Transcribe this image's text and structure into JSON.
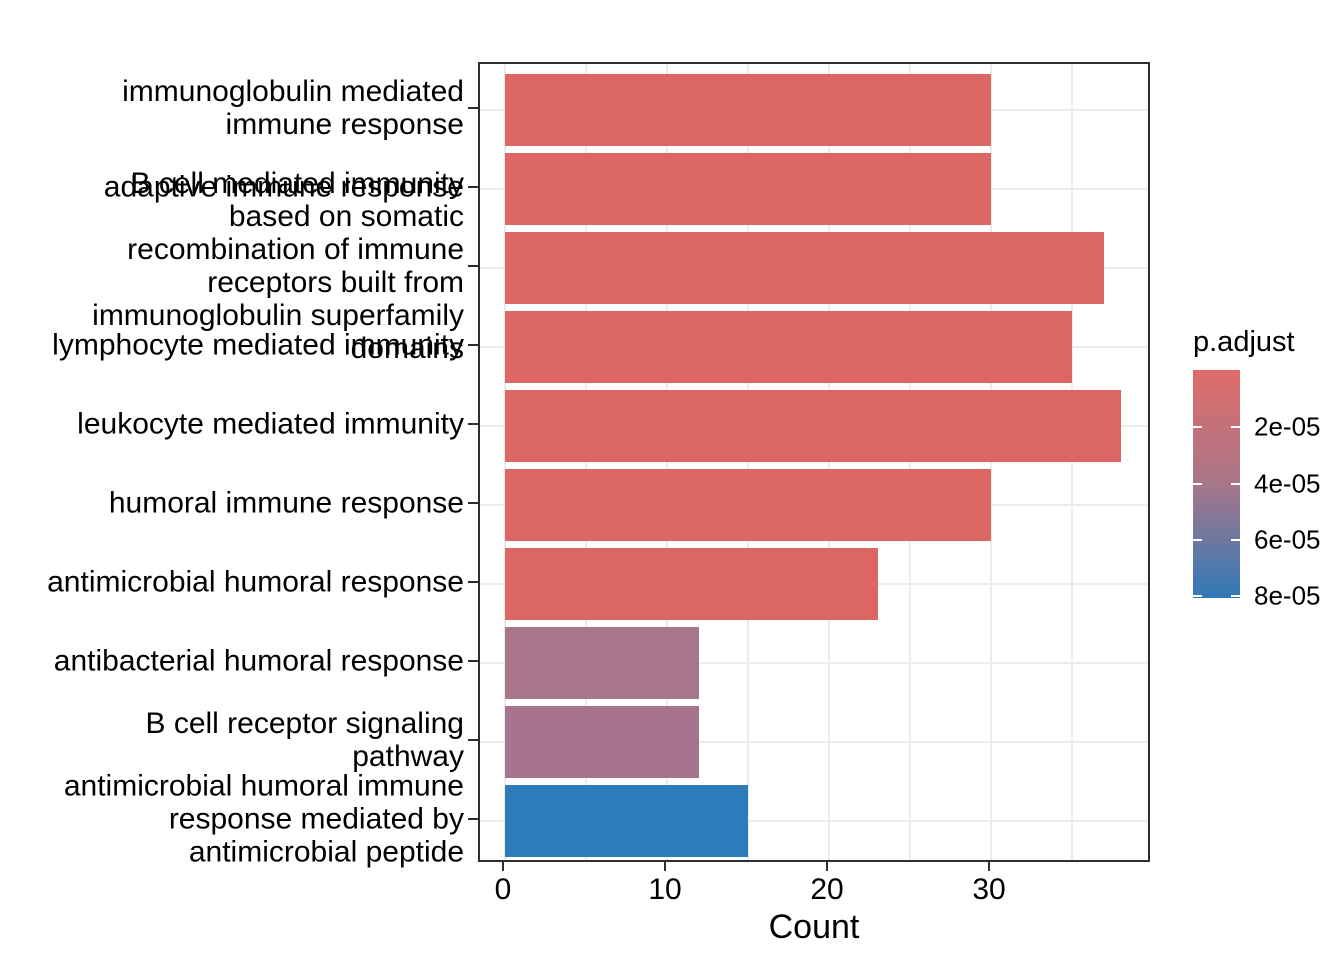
{
  "figure": {
    "background": "#FFFFFF",
    "panel_border_color": "#2E2E2E",
    "grid_color": "#ECECEC",
    "text_color": "#000000"
  },
  "chart_data": {
    "type": "bar",
    "orientation": "horizontal",
    "title": "",
    "xlabel": "Count",
    "ylabel": "",
    "grid": true,
    "xlim": [
      0,
      40
    ],
    "x_ticks": [
      0,
      10,
      20,
      30
    ],
    "x_tick_labels": [
      "0",
      "10",
      "20",
      "30"
    ],
    "categories": [
      "immunoglobulin mediated immune response",
      "adaptive immune response",
      "B cell mediated immunity based on somatic recombination of immune receptors built from immunoglobulin superfamily domains",
      "lymphocyte mediated immunity",
      "leukocyte mediated immunity",
      "humoral immune response",
      "antimicrobial humoral response",
      "antibacterial humoral response",
      "B cell receptor signaling pathway",
      "antimicrobial humoral immune response mediated by antimicrobial peptide"
    ],
    "category_display_lines": [
      [
        "immunoglobulin mediated",
        "immune response"
      ],
      [
        "adaptive immune response"
      ],
      [
        "B cell mediated immunity",
        "based on somatic",
        "recombination of immune",
        "receptors built from",
        "immunoglobulin superfamily",
        "domains"
      ],
      [
        "lymphocyte mediated immunity"
      ],
      [
        "leukocyte mediated immunity"
      ],
      [
        "humoral immune response"
      ],
      [
        "antimicrobial humoral response"
      ],
      [
        "antibacterial humoral response"
      ],
      [
        "B cell receptor signaling",
        "pathway"
      ],
      [
        "antimicrobial humoral immune",
        "response mediated by",
        "antimicrobial peptide"
      ]
    ],
    "values": [
      30,
      30,
      37,
      35,
      38,
      30,
      23,
      12,
      12,
      15
    ],
    "bar_colors": [
      "#DC6662",
      "#DC6662",
      "#DC6662",
      "#DC6662",
      "#DC6662",
      "#DC6662",
      "#DC6662",
      "#A8758B",
      "#A7748E",
      "#2F7CBB"
    ],
    "legend": {
      "title": "p.adjust",
      "position": "right",
      "style": "colorbar",
      "tick_labels": [
        "2e-05",
        "4e-05",
        "6e-05",
        "8e-05"
      ],
      "gradient_top_color": "#E06C69",
      "gradient_mid_color": "#A87689",
      "gradient_bottom_color": "#3079B8"
    }
  }
}
